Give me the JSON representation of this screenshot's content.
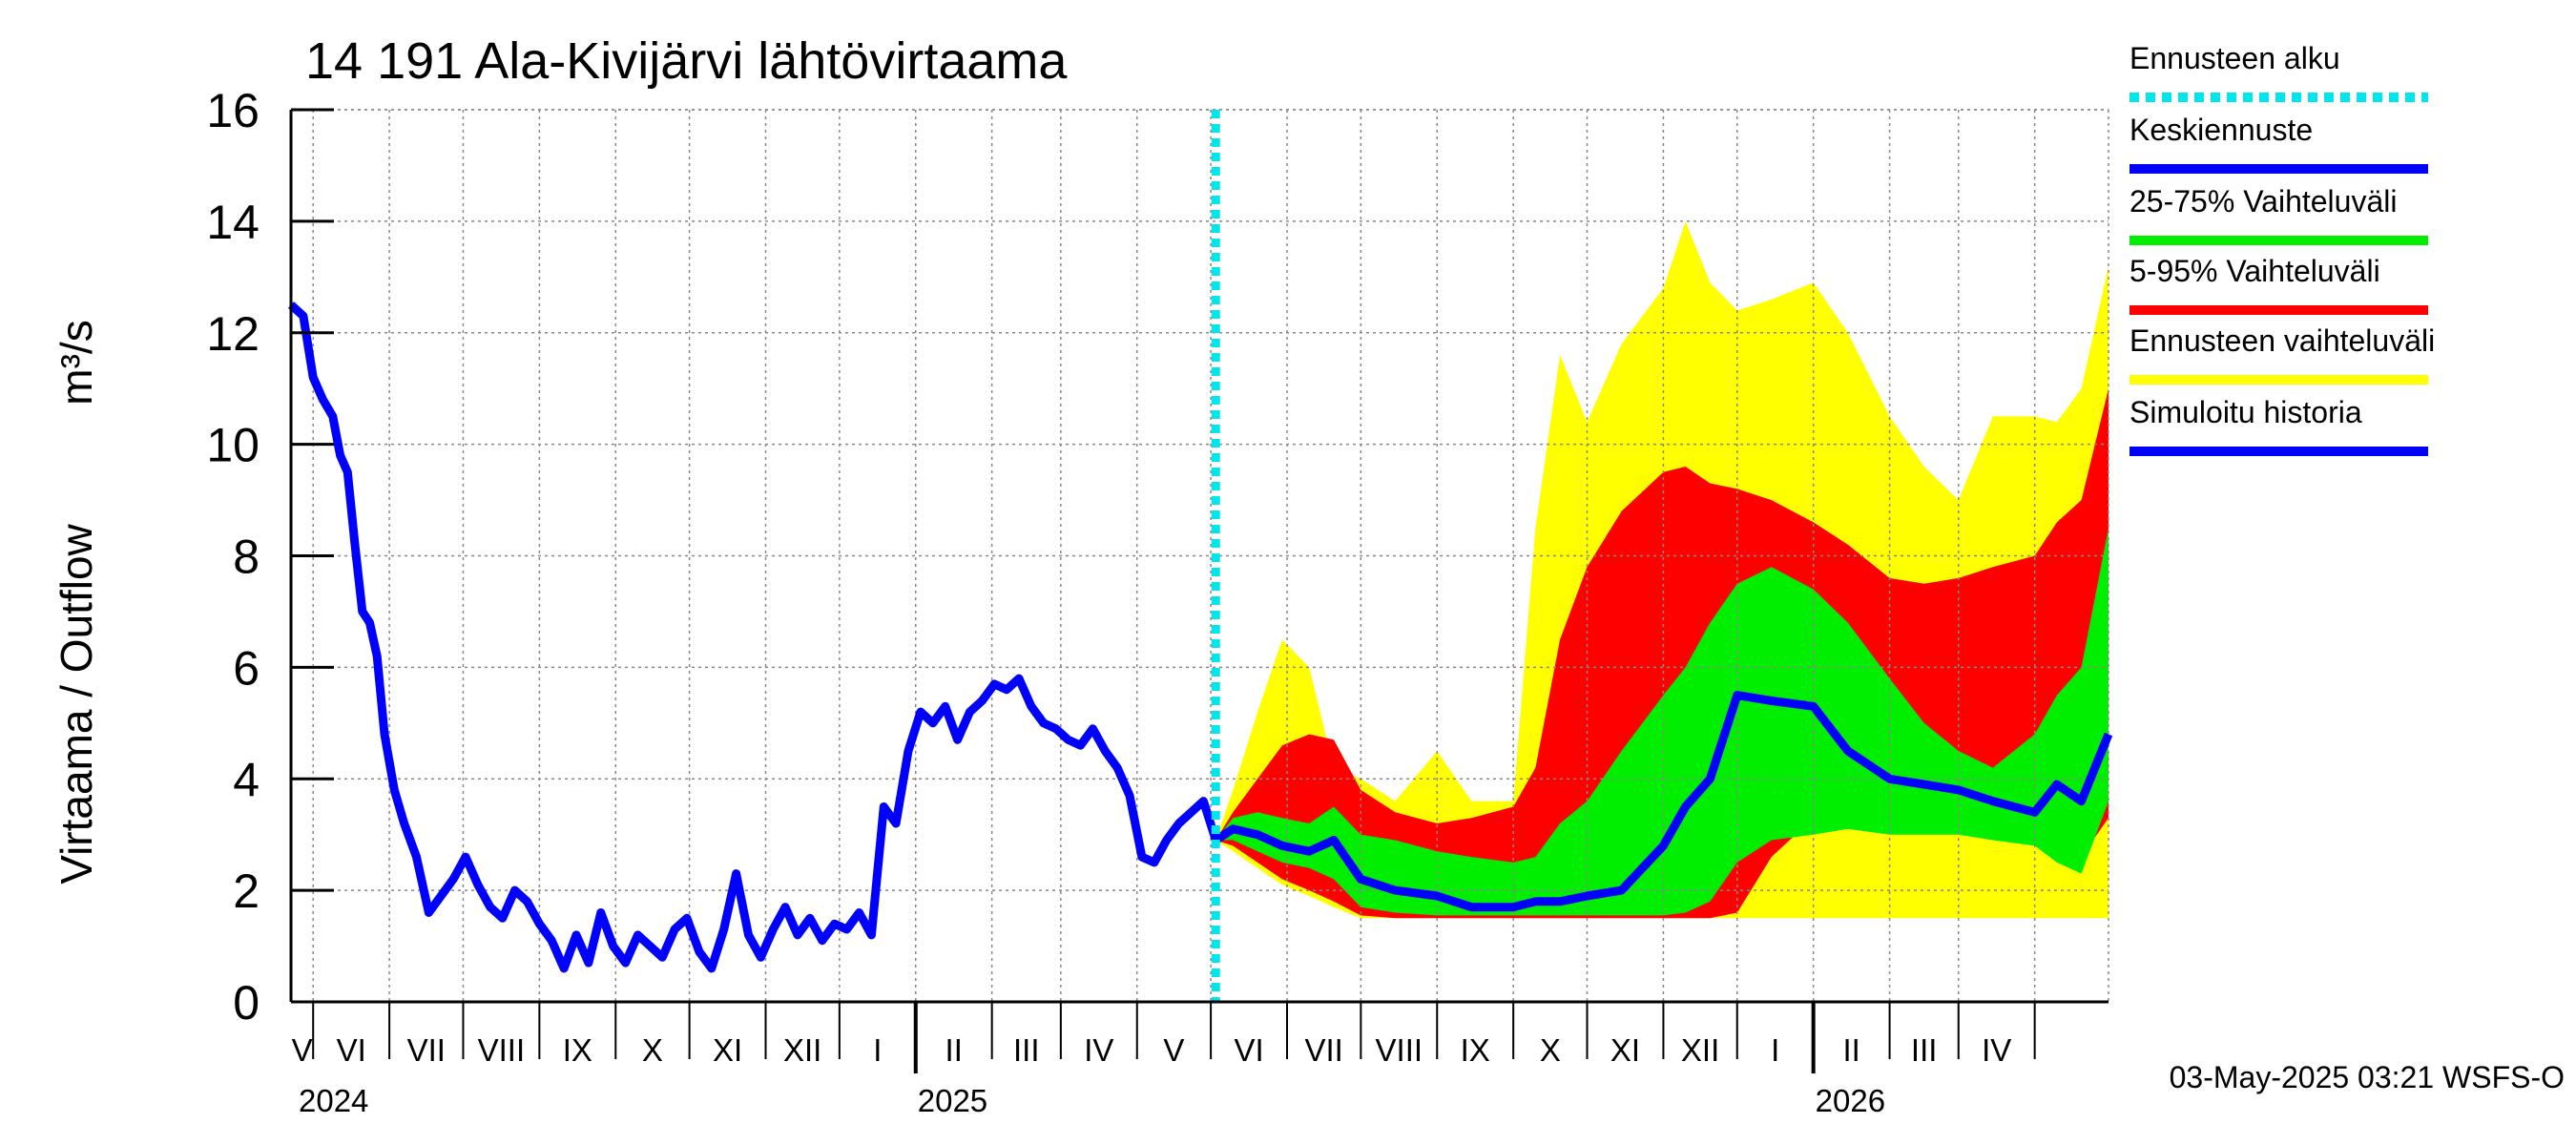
{
  "chart_data": {
    "type": "area",
    "title": "14 191 Ala-Kivijärvi lähtövirtaama",
    "ylabel": "Virtaama / Outflow",
    "yunit": "m³/s",
    "ylim": [
      0,
      16
    ],
    "yticks": [
      "0",
      "2",
      "4",
      "6",
      "8",
      "10",
      "12",
      "14",
      "16"
    ],
    "xlim": [
      "2024-04-22",
      "2026-05-01"
    ],
    "grid": true,
    "legend_position": "right",
    "month_labels": [
      "V",
      "VI",
      "VII",
      "VIII",
      "IX",
      "X",
      "XI",
      "XII",
      "I",
      "II",
      "III",
      "IV",
      "V",
      "VI",
      "VII",
      "VIII",
      "IX",
      "X",
      "XI",
      "XII",
      "I",
      "II",
      "III",
      "IV"
    ],
    "year_labels": [
      "2024",
      "2025",
      "2026"
    ],
    "forecast_start": "2025-05-03",
    "footer": "03-May-2025 03:21 WSFS-O",
    "legend": [
      {
        "key": "start",
        "label": "Ennusteen alku",
        "color": "#00e5ee",
        "style": "dotted"
      },
      {
        "key": "mean",
        "label": "Keskiennuste",
        "color": "#0000ff",
        "style": "solid"
      },
      {
        "key": "p25_75",
        "label": "25-75% Vaihteluväli",
        "color": "#00ee00",
        "style": "solid"
      },
      {
        "key": "p5_95",
        "label": "5-95% Vaihteluväli",
        "color": "#ff0000",
        "style": "solid"
      },
      {
        "key": "range",
        "label": "Ennusteen vaihteluväli",
        "color": "#ffff00",
        "style": "solid"
      },
      {
        "key": "history",
        "label": "Simuloitu historia",
        "color": "#0000ff",
        "style": "solid"
      }
    ],
    "history": {
      "name": "Simuloitu historia",
      "x": [
        "2024-04-22",
        "2024-04-27",
        "2024-05-01",
        "2024-05-05",
        "2024-05-09",
        "2024-05-12",
        "2024-05-15",
        "2024-05-18",
        "2024-05-21",
        "2024-05-24",
        "2024-05-27",
        "2024-05-30",
        "2024-06-03",
        "2024-06-07",
        "2024-06-12",
        "2024-06-17",
        "2024-06-22",
        "2024-06-27",
        "2024-07-02",
        "2024-07-07",
        "2024-07-12",
        "2024-07-17",
        "2024-07-22",
        "2024-07-27",
        "2024-08-01",
        "2024-08-06",
        "2024-08-11",
        "2024-08-16",
        "2024-08-21",
        "2024-08-26",
        "2024-08-31",
        "2024-09-05",
        "2024-09-10",
        "2024-09-15",
        "2024-09-20",
        "2024-09-25",
        "2024-09-30",
        "2024-10-05",
        "2024-10-10",
        "2024-10-15",
        "2024-10-20",
        "2024-10-25",
        "2024-10-30",
        "2024-11-04",
        "2024-11-09",
        "2024-11-14",
        "2024-11-19",
        "2024-11-24",
        "2024-11-29",
        "2024-12-04",
        "2024-12-09",
        "2024-12-14",
        "2024-12-19",
        "2024-12-24",
        "2024-12-29",
        "2025-01-03",
        "2025-01-08",
        "2025-01-13",
        "2025-01-18",
        "2025-01-23",
        "2025-01-28",
        "2025-02-02",
        "2025-02-07",
        "2025-02-12",
        "2025-02-17",
        "2025-02-22",
        "2025-02-27",
        "2025-03-04",
        "2025-03-09",
        "2025-03-14",
        "2025-03-19",
        "2025-03-24",
        "2025-03-29",
        "2025-04-03",
        "2025-04-08",
        "2025-04-13",
        "2025-04-18",
        "2025-04-23",
        "2025-04-28",
        "2025-05-03"
      ],
      "y": [
        12.5,
        12.3,
        11.2,
        10.8,
        10.5,
        9.8,
        9.5,
        8.2,
        7.0,
        6.8,
        6.2,
        4.8,
        3.8,
        3.2,
        2.6,
        1.6,
        1.9,
        2.2,
        2.6,
        2.1,
        1.7,
        1.5,
        2.0,
        1.8,
        1.4,
        1.1,
        0.6,
        1.2,
        0.7,
        1.6,
        1.0,
        0.7,
        1.2,
        1.0,
        0.8,
        1.3,
        1.5,
        0.9,
        0.6,
        1.3,
        2.3,
        1.2,
        0.8,
        1.3,
        1.7,
        1.2,
        1.5,
        1.1,
        1.4,
        1.3,
        1.6,
        1.2,
        3.5,
        3.2,
        4.5,
        5.2,
        5.0,
        5.3,
        4.7,
        5.2,
        5.4,
        5.7,
        5.6,
        5.8,
        5.3,
        5.0,
        4.9,
        4.7,
        4.6,
        4.9,
        4.5,
        4.2,
        3.7,
        2.6,
        2.5,
        2.9,
        3.2,
        3.4,
        3.6,
        2.9
      ]
    },
    "forecast": {
      "x": [
        "2025-05-03",
        "2025-05-10",
        "2025-05-20",
        "2025-05-30",
        "2025-06-10",
        "2025-06-20",
        "2025-07-01",
        "2025-07-15",
        "2025-08-01",
        "2025-08-15",
        "2025-09-01",
        "2025-09-10",
        "2025-09-20",
        "2025-10-01",
        "2025-10-15",
        "2025-11-01",
        "2025-11-10",
        "2025-11-20",
        "2025-12-01",
        "2025-12-15",
        "2026-01-01",
        "2026-01-15",
        "2026-02-01",
        "2026-02-15",
        "2026-03-01",
        "2026-03-15",
        "2026-04-01",
        "2026-04-10",
        "2026-04-20",
        "2026-05-01"
      ],
      "mean": [
        2.9,
        3.1,
        3.0,
        2.8,
        2.7,
        2.9,
        2.2,
        2.0,
        1.9,
        1.7,
        1.7,
        1.8,
        1.8,
        1.9,
        2.0,
        2.8,
        3.5,
        4.0,
        5.5,
        5.4,
        5.3,
        4.5,
        4.0,
        3.9,
        3.8,
        3.6,
        3.4,
        3.9,
        3.6,
        4.8
      ],
      "p25": [
        2.9,
        2.9,
        2.7,
        2.5,
        2.4,
        2.2,
        1.7,
        1.6,
        1.55,
        1.55,
        1.55,
        1.55,
        1.55,
        1.55,
        1.55,
        1.55,
        1.6,
        1.8,
        2.5,
        2.9,
        3.0,
        3.1,
        3.0,
        3.0,
        3.0,
        2.9,
        2.8,
        2.5,
        2.3,
        3.6
      ],
      "p75": [
        2.9,
        3.3,
        3.4,
        3.3,
        3.2,
        3.5,
        3.0,
        2.9,
        2.7,
        2.6,
        2.5,
        2.6,
        3.2,
        3.6,
        4.5,
        5.5,
        6.0,
        6.8,
        7.5,
        7.8,
        7.4,
        6.8,
        5.8,
        5.0,
        4.5,
        4.2,
        4.8,
        5.5,
        6.0,
        8.5
      ],
      "p5": [
        2.9,
        2.8,
        2.5,
        2.2,
        2.0,
        1.8,
        1.55,
        1.5,
        1.5,
        1.5,
        1.5,
        1.5,
        1.5,
        1.5,
        1.5,
        1.5,
        1.5,
        1.5,
        1.6,
        2.6,
        3.3,
        3.5,
        3.4,
        3.3,
        3.1,
        3.0,
        2.9,
        2.9,
        2.6,
        3.3
      ],
      "p95": [
        2.9,
        3.4,
        4.0,
        4.6,
        4.8,
        4.7,
        3.8,
        3.4,
        3.2,
        3.3,
        3.5,
        4.2,
        6.5,
        7.8,
        8.8,
        9.5,
        9.6,
        9.3,
        9.2,
        9.0,
        8.6,
        8.2,
        7.6,
        7.5,
        7.6,
        7.8,
        8.0,
        8.6,
        9.0,
        11.0
      ],
      "min": [
        2.9,
        2.7,
        2.4,
        2.1,
        1.9,
        1.7,
        1.5,
        1.5,
        1.5,
        1.5,
        1.5,
        1.5,
        1.5,
        1.5,
        1.5,
        1.5,
        1.5,
        1.5,
        1.5,
        1.5,
        1.5,
        1.5,
        1.5,
        1.5,
        1.5,
        1.5,
        1.5,
        1.5,
        1.5,
        1.5
      ],
      "max": [
        2.9,
        3.8,
        5.2,
        6.5,
        6.0,
        4.2,
        4.0,
        3.6,
        4.5,
        3.6,
        3.6,
        8.5,
        11.6,
        10.4,
        11.8,
        12.8,
        14.0,
        12.9,
        12.4,
        12.6,
        12.9,
        12.0,
        10.5,
        9.6,
        9.0,
        10.5,
        10.5,
        10.4,
        11.0,
        13.2
      ]
    }
  }
}
